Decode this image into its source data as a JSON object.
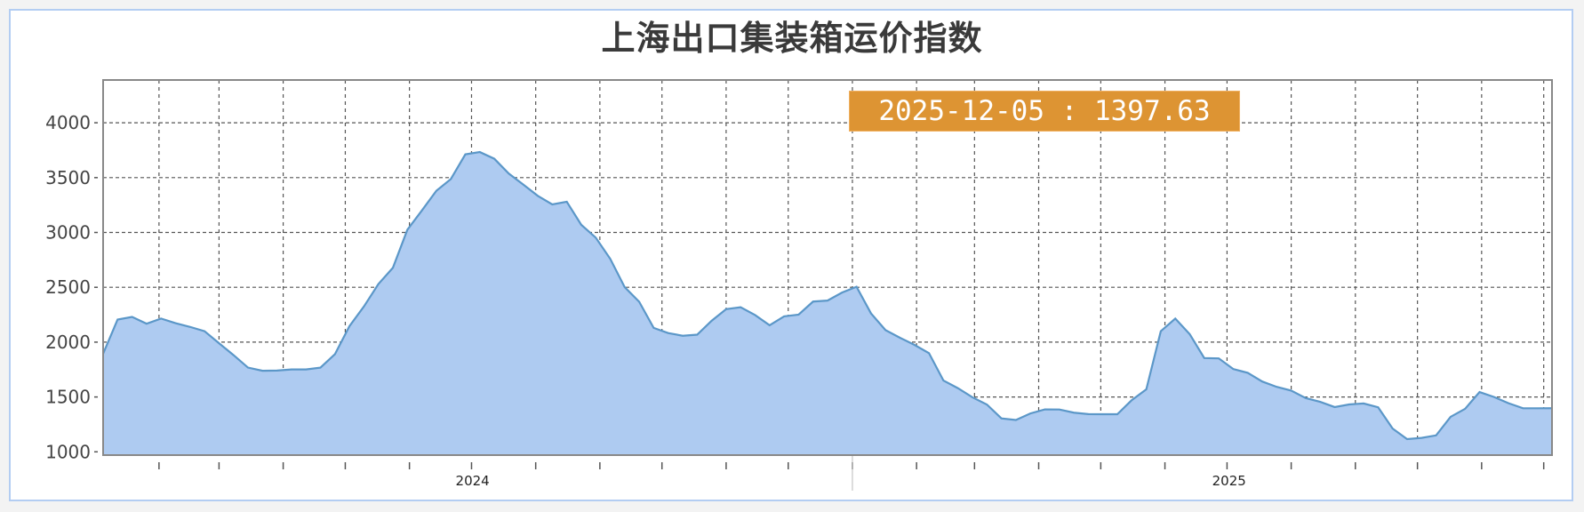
{
  "title": "上海出口集装箱运价指数",
  "tooltip": {
    "date": "2025-12-05",
    "separator": " : ",
    "value": "1397.63",
    "color": "#dd9433"
  },
  "chart_data": {
    "type": "area",
    "title": "上海出口集装箱运价指数",
    "xlabel": "",
    "ylabel": "",
    "ylim": [
      970,
      4390
    ],
    "xlim": [
      "2024-01-05",
      "2025-12-05"
    ],
    "yticks": [
      1000,
      1500,
      2000,
      2500,
      3000,
      3500,
      4000
    ],
    "xtick_labels": [
      {
        "label": "2024",
        "year": 2024
      },
      {
        "label": "2025",
        "year": 2025
      }
    ],
    "grid": true,
    "colors": {
      "fill": "#aecbf1",
      "line": "#5b97c8"
    },
    "x": [
      "2024-01-05",
      "2024-01-12",
      "2024-01-19",
      "2024-01-26",
      "2024-02-02",
      "2024-02-09",
      "2024-02-16",
      "2024-02-23",
      "2024-03-01",
      "2024-03-08",
      "2024-03-15",
      "2024-03-22",
      "2024-03-29",
      "2024-04-05",
      "2024-04-12",
      "2024-04-19",
      "2024-04-26",
      "2024-05-03",
      "2024-05-10",
      "2024-05-17",
      "2024-05-24",
      "2024-05-31",
      "2024-06-07",
      "2024-06-14",
      "2024-06-21",
      "2024-06-28",
      "2024-07-05",
      "2024-07-12",
      "2024-07-19",
      "2024-07-26",
      "2024-08-02",
      "2024-08-09",
      "2024-08-16",
      "2024-08-23",
      "2024-08-30",
      "2024-09-06",
      "2024-09-13",
      "2024-09-20",
      "2024-09-27",
      "2024-10-04",
      "2024-10-11",
      "2024-10-18",
      "2024-10-25",
      "2024-11-01",
      "2024-11-08",
      "2024-11-15",
      "2024-11-22",
      "2024-11-29",
      "2024-12-06",
      "2024-12-13",
      "2024-12-20",
      "2024-12-27",
      "2025-01-03",
      "2025-01-10",
      "2025-01-17",
      "2025-01-24",
      "2025-01-31",
      "2025-02-07",
      "2025-02-14",
      "2025-02-21",
      "2025-02-28",
      "2025-03-07",
      "2025-03-14",
      "2025-03-21",
      "2025-03-28",
      "2025-04-04",
      "2025-04-11",
      "2025-04-18",
      "2025-04-25",
      "2025-05-02",
      "2025-05-09",
      "2025-05-16",
      "2025-05-23",
      "2025-05-30",
      "2025-06-06",
      "2025-06-13",
      "2025-06-20",
      "2025-06-27",
      "2025-07-04",
      "2025-07-11",
      "2025-07-18",
      "2025-07-25",
      "2025-08-01",
      "2025-08-08",
      "2025-08-15",
      "2025-08-22",
      "2025-08-29",
      "2025-09-05",
      "2025-09-12",
      "2025-09-19",
      "2025-09-26",
      "2025-10-03",
      "2025-10-10",
      "2025-10-17",
      "2025-10-24",
      "2025-10-31",
      "2025-11-07",
      "2025-11-14",
      "2025-11-21",
      "2025-11-28",
      "2025-12-05"
    ],
    "values": [
      1894,
      2206,
      2230,
      2168,
      2215,
      2173,
      2139,
      2100,
      1990,
      1882,
      1768,
      1739,
      1741,
      1751,
      1751,
      1768,
      1890,
      2145,
      2325,
      2530,
      2678,
      3025,
      3200,
      3380,
      3487,
      3712,
      3733,
      3672,
      3537,
      3437,
      3334,
      3256,
      3280,
      3070,
      2953,
      2760,
      2501,
      2368,
      2130,
      2083,
      2058,
      2068,
      2195,
      2301,
      2318,
      2247,
      2154,
      2235,
      2251,
      2370,
      2379,
      2452,
      2505,
      2262,
      2110,
      2040,
      1975,
      1900,
      1650,
      1580,
      1497,
      1431,
      1305,
      1290,
      1350,
      1387,
      1386,
      1357,
      1344,
      1343,
      1343,
      1472,
      1570,
      2100,
      2215,
      2072,
      1855,
      1852,
      1755,
      1720,
      1641,
      1592,
      1558,
      1490,
      1456,
      1408,
      1432,
      1441,
      1406,
      1212,
      1116,
      1127,
      1150,
      1319,
      1392,
      1545,
      1500,
      1443,
      1397,
      1397,
      1397.63
    ]
  }
}
